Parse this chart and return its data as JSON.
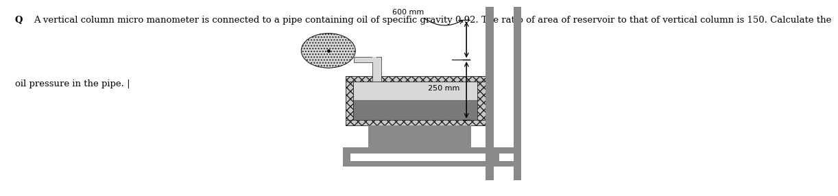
{
  "bg_color": "#ffffff",
  "text_q": "Q",
  "text_body": "A vertical column micro manometer is connected to a pipe containing oil of specific gravity 0.92. The ratio of area of reservoir to that of vertical column is 150. Calculate the",
  "text_line2": "oil pressure in the pipe. |",
  "label_600": "600 mm",
  "label_250": "250 mm",
  "wall_gray": "#8a8a8a",
  "hatch_gray": "#c8c8c8",
  "fluid_dark": "#7a7a7a",
  "line_color": "#222222",
  "font_size_text": 9.5,
  "font_size_label": 8
}
